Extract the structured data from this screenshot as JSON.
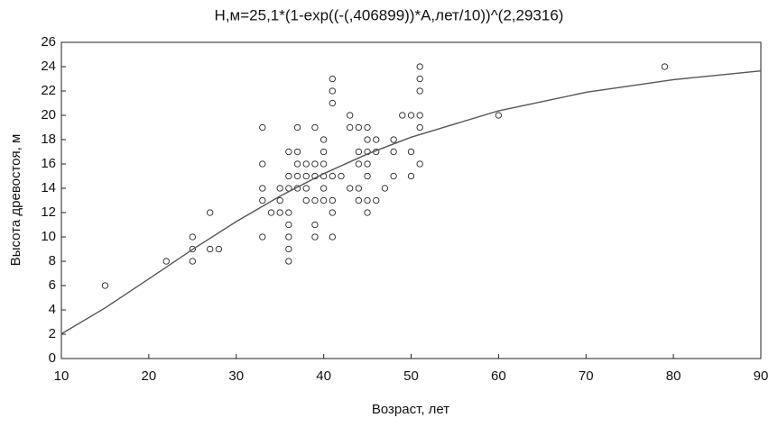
{
  "chart_data": {
    "type": "scatter",
    "title": "H,м=25,1*(1-exp((-(,406899))*A,лет/10))^(2,29316)",
    "x_label": "Возраст, лет",
    "y_label": "Высота древостоя, м",
    "xlim": [
      10,
      90
    ],
    "xticks": [
      10,
      20,
      30,
      40,
      50,
      60,
      70,
      80,
      90
    ],
    "ylim": [
      0,
      26
    ],
    "yticks": [
      0,
      2,
      4,
      6,
      8,
      10,
      12,
      14,
      16,
      18,
      20,
      22,
      24,
      26
    ],
    "grid": false,
    "series": [
      {
        "type": "scatter",
        "color": "#222",
        "x": [
          15,
          22,
          25,
          25,
          25,
          27,
          27,
          28,
          33,
          33,
          33,
          33,
          33,
          34,
          35,
          35,
          35,
          36,
          36,
          36,
          36,
          36,
          36,
          36,
          36,
          37,
          37,
          37,
          37,
          37,
          38,
          38,
          38,
          38,
          39,
          39,
          39,
          39,
          39,
          39,
          40,
          40,
          40,
          40,
          40,
          40,
          41,
          41,
          41,
          41,
          41,
          41,
          41,
          42,
          43,
          43,
          43,
          44,
          44,
          44,
          44,
          44,
          45,
          45,
          45,
          45,
          45,
          45,
          45,
          46,
          46,
          46,
          47,
          48,
          48,
          48,
          49,
          50,
          50,
          50,
          51,
          51,
          51,
          51,
          51,
          51,
          60,
          79
        ],
        "values": [
          6,
          8,
          10,
          9,
          8,
          12,
          9,
          9,
          19,
          16,
          14,
          13,
          10,
          12,
          14,
          13,
          12,
          17,
          15,
          14,
          12,
          11,
          10,
          9,
          8,
          19,
          17,
          16,
          15,
          14,
          16,
          15,
          14,
          13,
          19,
          16,
          15,
          13,
          11,
          10,
          18,
          17,
          16,
          15,
          14,
          13,
          23,
          22,
          21,
          15,
          13,
          12,
          10,
          15,
          20,
          19,
          14,
          19,
          17,
          16,
          14,
          13,
          19,
          18,
          17,
          16,
          15,
          13,
          12,
          18,
          17,
          13,
          14,
          18,
          17,
          15,
          20,
          20,
          17,
          15,
          24,
          23,
          22,
          20,
          19,
          16,
          20,
          24
        ]
      },
      {
        "type": "line",
        "color": "#555",
        "x": [
          10,
          15,
          20,
          25,
          30,
          35,
          40,
          45,
          50,
          60,
          70,
          80,
          90
        ],
        "values": [
          2.03,
          4.16,
          6.55,
          8.97,
          11.26,
          13.35,
          15.2,
          16.82,
          18.2,
          20.37,
          21.89,
          22.93,
          23.65
        ]
      }
    ]
  }
}
